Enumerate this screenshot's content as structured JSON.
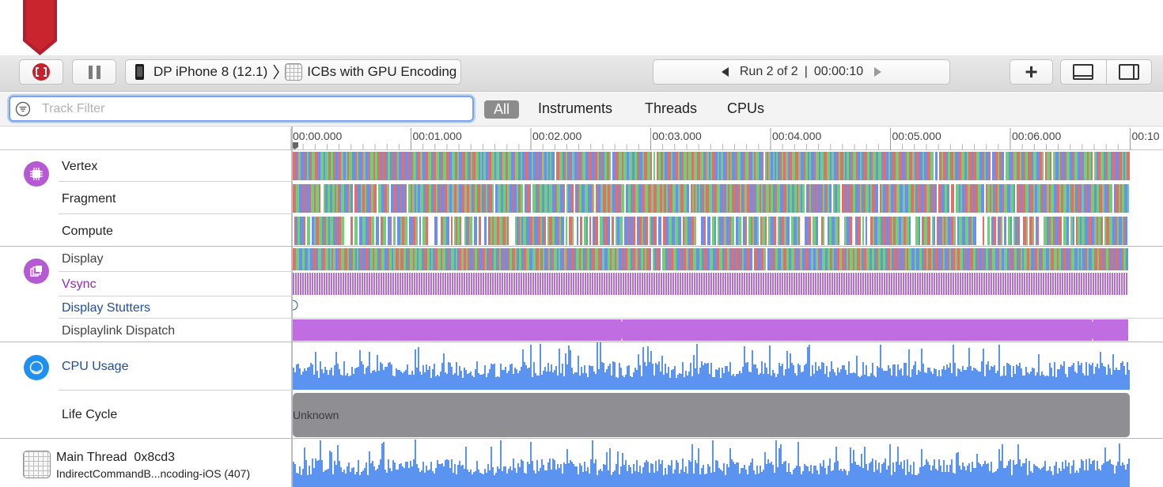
{
  "toolbar": {
    "record_button": "stop-record-icon",
    "pause_button": "pause-icon",
    "device": "DP iPhone 8 (12.1)",
    "target_app": "ICBs with GPU Encoding",
    "run_label": "Run 2 of 2",
    "run_separator": "|",
    "run_time": "00:00:10",
    "add_button": "plus-icon",
    "accent_color": "#c8212b"
  },
  "filter": {
    "placeholder": "Track Filter",
    "value": "",
    "scopes": [
      "All",
      "Instruments",
      "Threads",
      "CPUs"
    ],
    "selected_scope": "All"
  },
  "ruler": {
    "ticks": [
      "00:00.000",
      "00:01.000",
      "00:02.000",
      "00:03.000",
      "00:04.000",
      "00:05.000",
      "00:06.000",
      "00:10"
    ]
  },
  "tracks": {
    "gpu": {
      "icon": "gpu-chip-icon",
      "icon_color": "#b65ad4",
      "rows": [
        "Vertex",
        "Fragment",
        "Compute"
      ]
    },
    "display": {
      "icon": "display-layers-icon",
      "icon_color": "#b65ad4",
      "rows": [
        "Display",
        "Vsync",
        "Display Stutters",
        "Displaylink Dispatch"
      ]
    },
    "cpu": {
      "icon": "cpu-gauge-icon",
      "icon_color": "#1f8ff0",
      "label": "CPU Usage",
      "bar_color": "#5b93f0"
    },
    "lifecycle": {
      "label": "Life Cycle",
      "state": "Unknown"
    },
    "thread": {
      "name": "Main Thread",
      "id": "0x8cd3",
      "process": "IndirectCommandB...ncoding-iOS (407)"
    }
  },
  "colors": {
    "stripe_red": "#e0706a",
    "stripe_green": "#6fcf7b",
    "stripe_blue": "#6c8ef0",
    "vsync_purple": "#b86ad8",
    "dispatch_purple": "#bf6de0"
  }
}
